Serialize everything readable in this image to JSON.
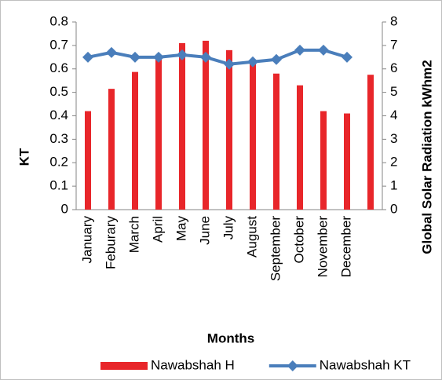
{
  "chart_data": {
    "type": "bar",
    "y_label": "KT",
    "y2_label": "Global Solar Radiation kWhm2",
    "x_label": "Months",
    "categories": [
      "January",
      "Feburary",
      "March",
      "April",
      "May",
      "June",
      "July",
      "August",
      "September",
      "October",
      "November",
      "December",
      null
    ],
    "series": [
      {
        "name": "Nawabshah H",
        "type": "bar",
        "axis": "y2",
        "color": "#e8262a",
        "values": [
          4.2,
          5.15,
          5.87,
          6.4,
          7.1,
          7.2,
          6.8,
          6.3,
          5.8,
          5.3,
          4.2,
          4.1,
          5.75
        ]
      },
      {
        "name": "Nawabshah KT",
        "type": "line",
        "color": "#4a7ebb",
        "values": [
          0.65,
          0.67,
          0.65,
          0.65,
          0.66,
          0.65,
          0.62,
          0.63,
          0.64,
          0.68,
          0.68,
          0.65,
          null
        ]
      }
    ],
    "ylim": [
      0,
      0.8
    ],
    "yticks": [
      0,
      0.1,
      0.2,
      0.3,
      0.4,
      0.5,
      0.6,
      0.7,
      0.8
    ],
    "y2lim": [
      0,
      8
    ],
    "y2ticks": [
      0,
      1,
      2,
      3,
      4,
      5,
      6,
      7,
      8
    ],
    "legend": "bottom"
  }
}
